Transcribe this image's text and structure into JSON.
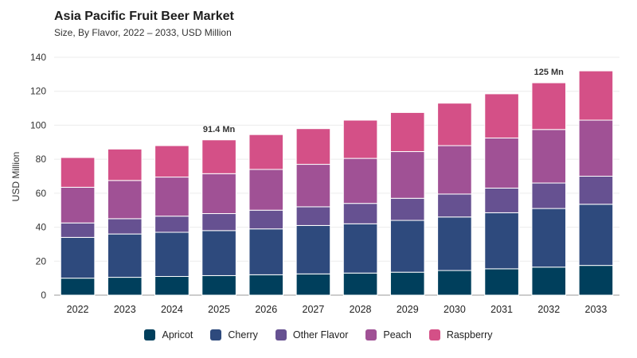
{
  "colors": {
    "Apricot": "#003f5c",
    "Cherry": "#2e4a7d",
    "Other Flavor": "#665191",
    "Peach": "#a05195",
    "Raspberry": "#d45087"
  },
  "chart_data": {
    "type": "bar",
    "stacked": true,
    "title": "Asia Pacific Fruit Beer Market",
    "subtitle": "Size, By Flavor, 2022 – 2033, USD Million",
    "ylabel": "USD Million",
    "xlabel": "",
    "ylim": [
      0,
      140
    ],
    "yticks": [
      0,
      20,
      40,
      60,
      80,
      100,
      120,
      140
    ],
    "grid": true,
    "legend": "bottom-center",
    "categories": [
      "2022",
      "2023",
      "2024",
      "2025",
      "2026",
      "2027",
      "2028",
      "2029",
      "2030",
      "2031",
      "2032",
      "2033"
    ],
    "series": [
      {
        "name": "Apricot",
        "values": [
          10,
          10.5,
          11,
          11.5,
          12,
          12.5,
          13,
          13.5,
          14.5,
          15.5,
          16.5,
          17.5
        ]
      },
      {
        "name": "Cherry",
        "values": [
          24,
          25.5,
          26,
          26.5,
          27,
          28.5,
          29,
          30.5,
          31.5,
          33,
          34.5,
          36
        ]
      },
      {
        "name": "Other Flavor",
        "values": [
          8.5,
          9,
          9.5,
          10,
          11,
          11,
          12,
          13,
          13.5,
          14.5,
          15,
          16.5
        ]
      },
      {
        "name": "Peach",
        "values": [
          21,
          22.5,
          23,
          23.5,
          24,
          25,
          26.5,
          27.5,
          28.5,
          29.5,
          31.5,
          33
        ]
      },
      {
        "name": "Raspberry",
        "values": [
          17.5,
          18.5,
          18.5,
          19.9,
          20.5,
          21,
          22.5,
          23,
          25,
          26,
          27.5,
          29
        ]
      }
    ],
    "annotations": [
      {
        "category": "2025",
        "text": "91.4 Mn"
      },
      {
        "category": "2032",
        "text": "125 Mn"
      }
    ]
  }
}
